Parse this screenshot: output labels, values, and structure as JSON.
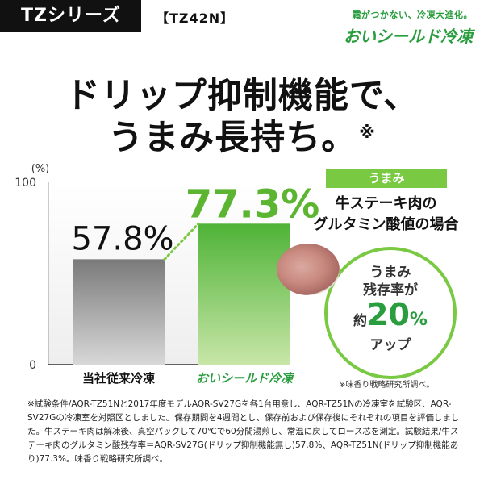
{
  "header": {
    "series": "TZシリーズ",
    "model": "【TZ42N】",
    "brand_tagline": "霜がつかない、冷凍大進化。",
    "brand_name": "おいシールド冷凍"
  },
  "headline": {
    "line1": "ドリップ抑制機能で、",
    "line2": "うまみ長持ち。",
    "mark": "※"
  },
  "side": {
    "label": "うまみ",
    "subject_line1": "牛ステーキ肉の",
    "subject_line2": "グルタミン酸値の場合",
    "bubble_line1": "うまみ",
    "bubble_line2": "残存率が",
    "bubble_prefix": "約",
    "bubble_value": "20",
    "bubble_unit": "%",
    "bubble_suffix": "アップ",
    "source_note": "※味香り戦略研究所調べ。"
  },
  "chart_data": {
    "type": "bar",
    "categories": [
      "当社従来冷凍",
      "おいシールド冷凍"
    ],
    "values": [
      57.8,
      77.3
    ],
    "value_labels": [
      "57.8%",
      "77.3%"
    ],
    "ylabel": "(%)",
    "ylim": [
      0,
      100
    ],
    "yticks": [
      "0",
      "100"
    ],
    "colors": {
      "conventional": "#9a9a9a",
      "shield": "#7ac943",
      "label_green": "#5cb531",
      "connector": "#7ac943"
    }
  },
  "footnote": "※試験条件/AQR-TZ51Nと2017年度モデルAQR-SV27Gを各1台用意し、AQR-TZ51Nの冷凍室を試験区、AQR-SV27Gの冷凍室を対照区としました。保存期間を4週間とし、保存前および保存後にそれぞれの項目を評価しました。牛ステーキ肉は解凍後、真空パックして70℃で60分間湯煎し、常温に戻してロース芯を測定。試験結果/牛ステーキ肉のグルタミン酸残存率＝AQR-SV27G(ドリップ抑制機能無し)57.8%、AQR-TZ51N(ドリップ抑制機能あり)77.3%。味香り戦略研究所調べ。"
}
